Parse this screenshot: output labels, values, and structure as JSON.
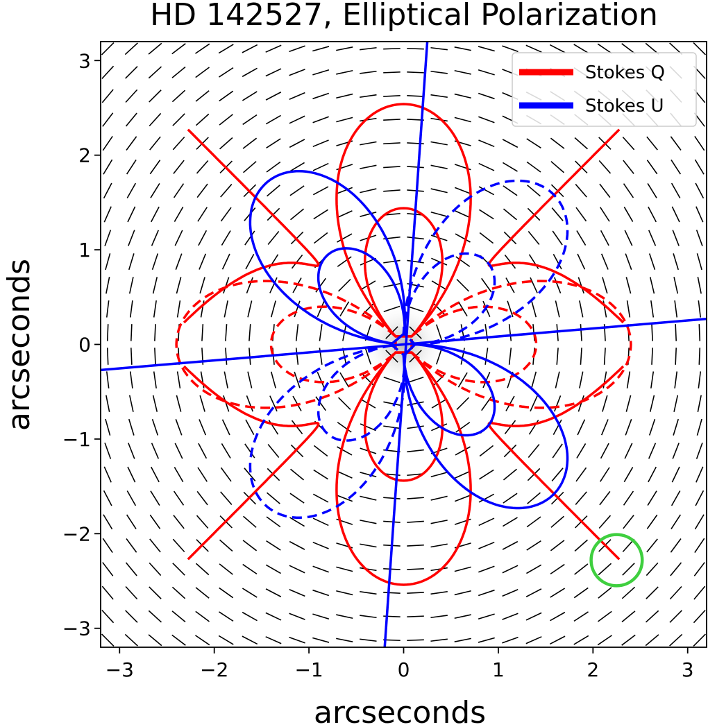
{
  "chart_data": {
    "type": "line",
    "title": "HD 142527, Elliptical Polarization",
    "xlabel": "arcseconds",
    "ylabel": "arcseconds",
    "xlim": [
      -3.2,
      3.2
    ],
    "ylim": [
      -3.2,
      3.2
    ],
    "xticks": [
      -3,
      -2,
      -1,
      0,
      1,
      2,
      3
    ],
    "yticks": [
      -3,
      -2,
      -1,
      0,
      1,
      2,
      3
    ],
    "xtick_labels": [
      "−3",
      "−2",
      "−1",
      "0",
      "1",
      "2",
      "3"
    ],
    "ytick_labels": [
      "−3",
      "−2",
      "−1",
      "0",
      "1",
      "2",
      "3"
    ],
    "grid": false,
    "legend": {
      "placement": "top-right",
      "entries": [
        {
          "label": "Stokes Q",
          "color": "#ff0000"
        },
        {
          "label": "Stokes U",
          "color": "#0000ff"
        }
      ]
    },
    "polarization_vectors": {
      "grid_spacing_arcsec": 0.25,
      "orientation": "azimuthal",
      "color": "#000000"
    },
    "series": [
      {
        "name": "Stokes Q",
        "color": "#ff0000",
        "solid_lobes": [
          {
            "angle_deg": 90,
            "radius": 1.32
          },
          {
            "angle_deg": 90,
            "radius": 2.42
          },
          {
            "angle_deg": -90,
            "radius": 1.32
          },
          {
            "angle_deg": -90,
            "radius": 2.42
          }
        ],
        "dashed_lobes": [
          {
            "angle_deg": 0,
            "radius": 1.28
          },
          {
            "angle_deg": 0,
            "radius": 2.28
          },
          {
            "angle_deg": 180,
            "radius": 1.28
          },
          {
            "angle_deg": 180,
            "radius": 2.28
          }
        ],
        "zero_contours": "hyperbolic diagonals"
      },
      {
        "name": "Stokes U",
        "color": "#0000ff",
        "solid_lobes": [
          {
            "angle_deg": 130,
            "radius": 1.12
          },
          {
            "angle_deg": 130,
            "radius": 2.12
          },
          {
            "angle_deg": -45,
            "radius": 1.12
          },
          {
            "angle_deg": -45,
            "radius": 2.12
          }
        ],
        "dashed_lobes": [
          {
            "angle_deg": 45,
            "radius": 1.12
          },
          {
            "angle_deg": 45,
            "radius": 2.12
          },
          {
            "angle_deg": -130,
            "radius": 1.12
          },
          {
            "angle_deg": -130,
            "radius": 2.12
          }
        ],
        "zero_contours": [
          {
            "from": [
              -3.2,
              -0.27
            ],
            "to": [
              3.2,
              0.27
            ]
          },
          {
            "from": [
              -0.2,
              -3.2
            ],
            "to": [
              0.25,
              3.2
            ]
          }
        ]
      }
    ],
    "annotations": [
      {
        "type": "circle",
        "center": [
          2.25,
          -2.28
        ],
        "radius": 0.27,
        "color": "#3fcf3f"
      }
    ]
  }
}
